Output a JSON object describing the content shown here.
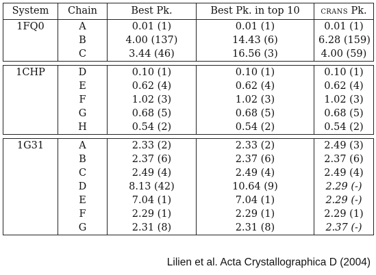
{
  "table": {
    "headers": {
      "system": "System",
      "chain": "Chain",
      "best": "Best Pk.",
      "best_top10": "Best Pk. in top 10",
      "crans_prefix": "crans",
      "crans_suffix": " Pk."
    },
    "groups": [
      {
        "system": "1FQ0",
        "rows": [
          {
            "chain": "A",
            "best": "0.01 (1)",
            "top10": "0.01 (1)",
            "crans": "0.01 (1)"
          },
          {
            "chain": "B",
            "best": "4.00 (137)",
            "top10": "14.43 (6)",
            "crans": "6.28 (159)"
          },
          {
            "chain": "C",
            "best": "3.44 (46)",
            "top10": "16.56 (3)",
            "crans": "4.00 (59)"
          }
        ]
      },
      {
        "system": "1CHP",
        "rows": [
          {
            "chain": "D",
            "best": "0.10 (1)",
            "top10": "0.10 (1)",
            "crans": "0.10 (1)"
          },
          {
            "chain": "E",
            "best": "0.62 (4)",
            "top10": "0.62 (4)",
            "crans": "0.62 (4)"
          },
          {
            "chain": "F",
            "best": "1.02 (3)",
            "top10": "1.02 (3)",
            "crans": "1.02 (3)"
          },
          {
            "chain": "G",
            "best": "0.68 (5)",
            "top10": "0.68 (5)",
            "crans": "0.68 (5)"
          },
          {
            "chain": "H",
            "best": "0.54 (2)",
            "top10": "0.54 (2)",
            "crans": "0.54 (2)"
          }
        ]
      },
      {
        "system": "1G31",
        "rows": [
          {
            "chain": "A",
            "best": "2.33 (2)",
            "top10": "2.33 (2)",
            "crans": "2.49 (3)"
          },
          {
            "chain": "B",
            "best": "2.37 (6)",
            "top10": "2.37 (6)",
            "crans": "2.37 (6)"
          },
          {
            "chain": "C",
            "best": "2.49 (4)",
            "top10": "2.49 (4)",
            "crans": "2.49 (4)"
          },
          {
            "chain": "D",
            "best": "8.13 (42)",
            "top10": "10.64 (9)",
            "crans": "2.29 (-)",
            "crans_italic": true
          },
          {
            "chain": "E",
            "best": "7.04 (1)",
            "top10": "7.04 (1)",
            "crans": "2.29 (-)",
            "crans_italic": true
          },
          {
            "chain": "F",
            "best": "2.29 (1)",
            "top10": "2.29 (1)",
            "crans": "2.29 (1)"
          },
          {
            "chain": "G",
            "best": "2.31 (8)",
            "top10": "2.31 (8)",
            "crans": "2.37 (-)",
            "crans_italic": true
          }
        ]
      }
    ]
  },
  "citation": "Lilien et al. Acta Crystallographica D (2004)"
}
